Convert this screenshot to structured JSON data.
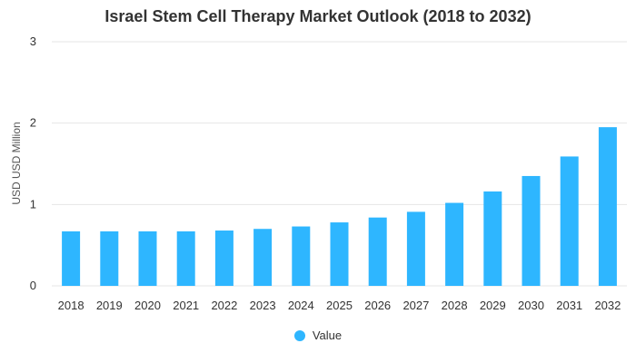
{
  "chart_data": {
    "type": "bar",
    "title": "Israel Stem Cell Therapy Market Outlook (2018 to 2032)",
    "xlabel": "",
    "ylabel": "USD USD Million",
    "ylim": [
      0,
      3
    ],
    "yticks": [
      0,
      1,
      2,
      3
    ],
    "grid": true,
    "legend_position": "bottom",
    "categories": [
      "2018",
      "2019",
      "2020",
      "2021",
      "2022",
      "2023",
      "2024",
      "2025",
      "2026",
      "2027",
      "2028",
      "2029",
      "2030",
      "2031",
      "2032"
    ],
    "series": [
      {
        "name": "Value",
        "color": "#2eb6ff",
        "values": [
          0.67,
          0.67,
          0.67,
          0.67,
          0.68,
          0.7,
          0.73,
          0.78,
          0.84,
          0.91,
          1.02,
          1.16,
          1.35,
          1.59,
          1.95
        ]
      }
    ]
  }
}
